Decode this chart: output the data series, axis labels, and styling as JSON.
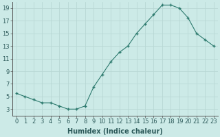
{
  "x": [
    0,
    1,
    2,
    3,
    4,
    5,
    6,
    7,
    8,
    9,
    10,
    11,
    12,
    13,
    14,
    15,
    16,
    17,
    18,
    19,
    20,
    21,
    22,
    23
  ],
  "y": [
    5.5,
    5.0,
    4.5,
    4.0,
    4.0,
    3.5,
    3.0,
    3.0,
    3.5,
    6.5,
    8.5,
    10.5,
    12.0,
    13.0,
    15.0,
    16.5,
    18.0,
    19.5,
    19.5,
    19.0,
    17.5,
    15.0,
    14.0,
    13.0
  ],
  "line_color": "#2d7a6e",
  "marker": "+",
  "marker_size": 3,
  "marker_edge_width": 1.0,
  "line_width": 0.8,
  "xlabel": "Humidex (Indice chaleur)",
  "bg_color": "#cceae7",
  "grid_color": "#b8d8d4",
  "ylim": [
    2,
    20
  ],
  "xlim": [
    -0.5,
    23.5
  ],
  "yticks": [
    3,
    5,
    7,
    9,
    11,
    13,
    15,
    17,
    19
  ],
  "xticks": [
    0,
    1,
    2,
    3,
    4,
    5,
    6,
    7,
    8,
    9,
    10,
    11,
    12,
    13,
    14,
    15,
    16,
    17,
    18,
    19,
    20,
    21,
    22,
    23
  ],
  "xtick_labels": [
    "0",
    "1",
    "2",
    "3",
    "4",
    "5",
    "6",
    "7",
    "8",
    "9",
    "10",
    "11",
    "12",
    "13",
    "14",
    "15",
    "16",
    "17",
    "18",
    "19",
    "20",
    "21",
    "22",
    "23"
  ],
  "tick_fontsize": 6,
  "xlabel_fontsize": 7,
  "xlabel_fontweight": "bold"
}
